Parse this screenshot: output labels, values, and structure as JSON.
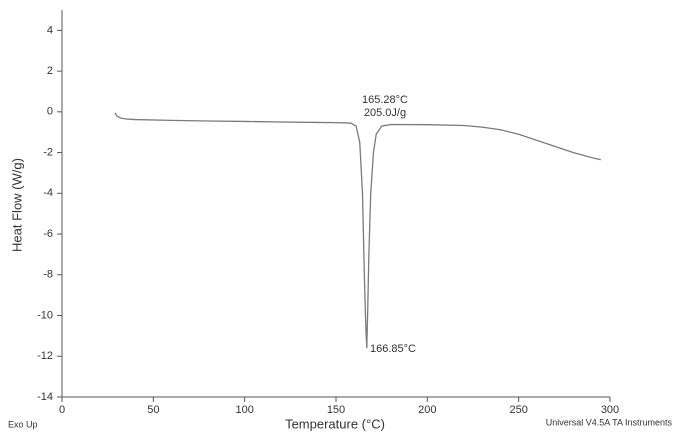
{
  "chart_data": {
    "type": "line",
    "x_label": "Temperature (°C)",
    "y_label": "Heat Flow (W/g)",
    "series": [
      {
        "color": "#7a7a7a",
        "x": [
          29,
          30,
          32,
          35,
          40,
          60,
          80,
          100,
          120,
          140,
          150,
          158,
          161,
          163,
          164.5,
          165.5,
          166.3,
          166.85,
          167.3,
          168,
          169,
          170.5,
          172,
          175,
          180,
          200,
          220,
          230,
          240,
          250,
          260,
          270,
          280,
          290,
          295
        ],
        "values": [
          -0.05,
          -0.2,
          -0.3,
          -0.35,
          -0.38,
          -0.42,
          -0.45,
          -0.47,
          -0.5,
          -0.52,
          -0.53,
          -0.55,
          -0.7,
          -1.5,
          -4,
          -8,
          -10.5,
          -11.6,
          -10,
          -7,
          -4,
          -2,
          -1.1,
          -0.7,
          -0.62,
          -0.63,
          -0.67,
          -0.75,
          -0.88,
          -1.1,
          -1.4,
          -1.7,
          -2.0,
          -2.25,
          -2.35
        ]
      }
    ],
    "annotations": [
      "165.28°C",
      "205.0J/g",
      "166.85°C"
    ],
    "footer_left": "Exo Up",
    "footer_right": "Universal V4.5A TA Instruments",
    "xlim": [
      0,
      300
    ],
    "xticks": [
      0,
      50,
      100,
      150,
      200,
      250,
      300
    ],
    "ylim": [
      -14,
      5
    ],
    "yticks": [
      4,
      2,
      0,
      -2,
      -4,
      -6,
      -8,
      -10,
      -12,
      -14
    ]
  }
}
